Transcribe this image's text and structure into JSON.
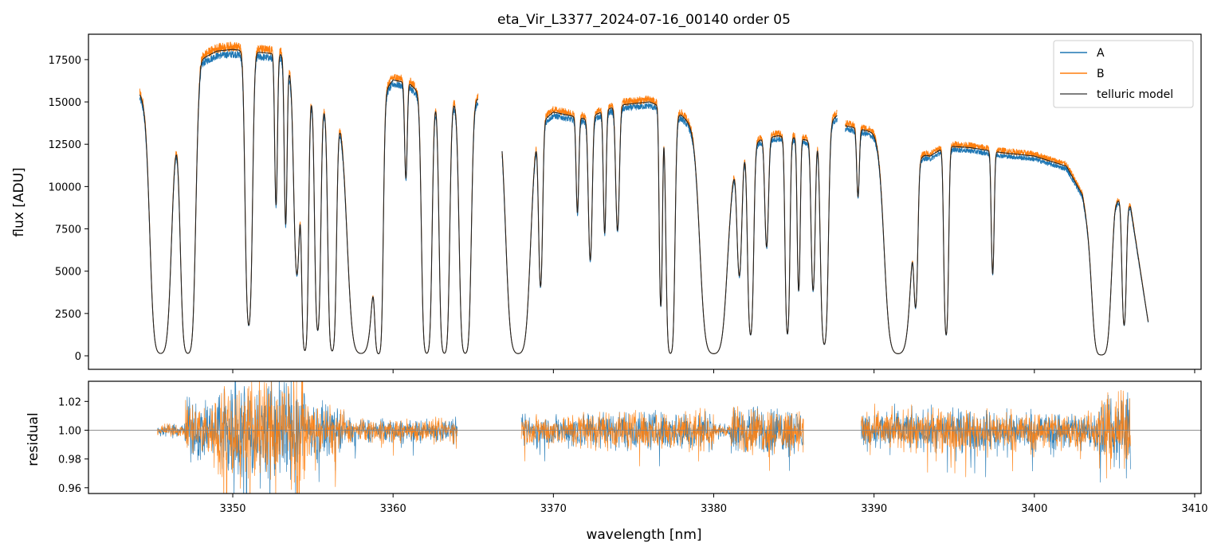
{
  "colors": {
    "A": "#1f77b4",
    "B": "#ff7f0e",
    "model": "#222222",
    "axis": "#000000",
    "refline": "#808080"
  },
  "chart_data": [
    {
      "type": "line",
      "panel": "spectrum",
      "title": "eta_Vir_L3377_2024-07-16_00140  order 05",
      "xlabel": "",
      "ylabel": "flux [ADU]",
      "xlim": [
        3341.0,
        3410.4
      ],
      "ylim": [
        -800,
        19000
      ],
      "yticks": [
        0,
        2500,
        5000,
        7500,
        10000,
        12500,
        15000,
        17500
      ],
      "ytick_labels": [
        "0",
        "2500",
        "5000",
        "7500",
        "10000",
        "12500",
        "15000",
        "17500"
      ],
      "xticks": [
        3350,
        3360,
        3370,
        3380,
        3390,
        3400,
        3410
      ],
      "segments": [
        [
          3344.2,
          3365.3
        ],
        [
          3366.8,
          3387.7
        ],
        [
          3388.2,
          3407.1
        ]
      ],
      "series": [
        {
          "name": "A",
          "color": "#1f77b4"
        },
        {
          "name": "B",
          "color": "#ff7f0e"
        },
        {
          "name": "telluric model",
          "color": "#222222"
        }
      ],
      "continuum_points": [
        [
          3344.2,
          15500
        ],
        [
          3346.0,
          13500
        ],
        [
          3347.5,
          15000
        ],
        [
          3348.0,
          17500
        ],
        [
          3349.0,
          18000
        ],
        [
          3350.0,
          18100
        ],
        [
          3351.0,
          18000
        ],
        [
          3352.0,
          17900
        ],
        [
          3353.0,
          17800
        ],
        [
          3354.0,
          16000
        ],
        [
          3356.0,
          14500
        ],
        [
          3358.0,
          14000
        ],
        [
          3360.0,
          16300
        ],
        [
          3361.0,
          16100
        ],
        [
          3362.0,
          15200
        ],
        [
          3363.0,
          15500
        ],
        [
          3364.0,
          15000
        ],
        [
          3365.3,
          15200
        ],
        [
          3366.8,
          14800
        ],
        [
          3368.0,
          12800
        ],
        [
          3370.0,
          14400
        ],
        [
          3372.0,
          14000
        ],
        [
          3374.0,
          14800
        ],
        [
          3376.0,
          15000
        ],
        [
          3377.0,
          14600
        ],
        [
          3378.0,
          14200
        ],
        [
          3380.0,
          12500
        ],
        [
          3381.0,
          11500
        ],
        [
          3383.0,
          12800
        ],
        [
          3384.0,
          13000
        ],
        [
          3385.0,
          12900
        ],
        [
          3386.0,
          12700
        ],
        [
          3387.7,
          14200
        ],
        [
          3388.2,
          13600
        ],
        [
          3390.0,
          13200
        ],
        [
          3392.0,
          12200
        ],
        [
          3393.5,
          11800
        ],
        [
          3394.5,
          12400
        ],
        [
          3396.0,
          12300
        ],
        [
          3398.0,
          12000
        ],
        [
          3400.0,
          11800
        ],
        [
          3402.0,
          11200
        ],
        [
          3403.0,
          9500
        ],
        [
          3404.0,
          4000
        ],
        [
          3405.0,
          9400
        ],
        [
          3406.0,
          8800
        ],
        [
          3407.1,
          2000
        ]
      ],
      "absorption_bands": [
        [
          3345.5,
          0.7,
          0.99
        ],
        [
          3347.2,
          0.5,
          0.99
        ],
        [
          3351.0,
          0.3,
          0.9
        ],
        [
          3352.7,
          0.15,
          0.5
        ],
        [
          3353.3,
          0.15,
          0.55
        ],
        [
          3354.0,
          0.3,
          0.7
        ],
        [
          3354.5,
          0.25,
          0.98
        ],
        [
          3355.3,
          0.25,
          0.9
        ],
        [
          3356.2,
          0.3,
          0.98
        ],
        [
          3358.0,
          0.9,
          0.99
        ],
        [
          3359.1,
          0.3,
          0.99
        ],
        [
          3360.8,
          0.15,
          0.35
        ],
        [
          3362.1,
          0.35,
          0.99
        ],
        [
          3363.2,
          0.35,
          0.99
        ],
        [
          3364.5,
          0.4,
          0.99
        ],
        [
          3367.8,
          0.8,
          0.99
        ],
        [
          3369.2,
          0.2,
          0.7
        ],
        [
          3371.5,
          0.15,
          0.4
        ],
        [
          3372.3,
          0.2,
          0.6
        ],
        [
          3373.2,
          0.15,
          0.5
        ],
        [
          3374.0,
          0.2,
          0.5
        ],
        [
          3376.7,
          0.15,
          0.8
        ],
        [
          3377.3,
          0.3,
          0.99
        ],
        [
          3380.0,
          0.9,
          0.99
        ],
        [
          3381.6,
          0.25,
          0.6
        ],
        [
          3382.3,
          0.25,
          0.9
        ],
        [
          3383.3,
          0.2,
          0.5
        ],
        [
          3384.6,
          0.2,
          0.9
        ],
        [
          3385.3,
          0.15,
          0.7
        ],
        [
          3386.2,
          0.2,
          0.7
        ],
        [
          3386.9,
          0.3,
          0.95
        ],
        [
          3389.0,
          0.15,
          0.3
        ],
        [
          3391.5,
          0.9,
          0.99
        ],
        [
          3392.6,
          0.2,
          0.7
        ],
        [
          3394.5,
          0.2,
          0.9
        ],
        [
          3397.4,
          0.15,
          0.6
        ],
        [
          3404.2,
          0.6,
          0.99
        ],
        [
          3405.6,
          0.2,
          0.8
        ]
      ],
      "legend": {
        "position": "top-right",
        "entries": [
          "A",
          "B",
          "telluric model"
        ]
      }
    },
    {
      "type": "line",
      "panel": "residual",
      "title": "",
      "xlabel": "wavelength [nm]",
      "ylabel": "residual",
      "xlim": [
        3341.0,
        3410.4
      ],
      "ylim": [
        0.956,
        1.034
      ],
      "yticks": [
        0.96,
        0.98,
        1.0,
        1.02
      ],
      "ytick_labels": [
        "0.96",
        "0.98",
        "1.00",
        "1.02"
      ],
      "xticks": [
        3350,
        3360,
        3370,
        3380,
        3390,
        3400,
        3410
      ],
      "xtick_labels": [
        "3350",
        "3360",
        "3370",
        "3380",
        "3390",
        "3400",
        "3410"
      ],
      "reference_line": 1.0,
      "segments": [
        [
          3345.3,
          3364.0
        ],
        [
          3368.0,
          3385.6
        ],
        [
          3389.2,
          3406.0
        ]
      ],
      "noise_regions": [
        [
          3345.3,
          3347.0,
          0.003
        ],
        [
          3347.0,
          3349.0,
          0.015
        ],
        [
          3349.0,
          3354.5,
          0.028
        ],
        [
          3354.5,
          3357.0,
          0.012
        ],
        [
          3357.0,
          3364.0,
          0.006
        ],
        [
          3368.0,
          3371.0,
          0.008
        ],
        [
          3371.0,
          3380.0,
          0.01
        ],
        [
          3380.0,
          3381.0,
          0.003
        ],
        [
          3381.0,
          3385.6,
          0.012
        ],
        [
          3389.2,
          3404.0,
          0.01
        ],
        [
          3404.0,
          3406.0,
          0.018
        ]
      ]
    }
  ]
}
